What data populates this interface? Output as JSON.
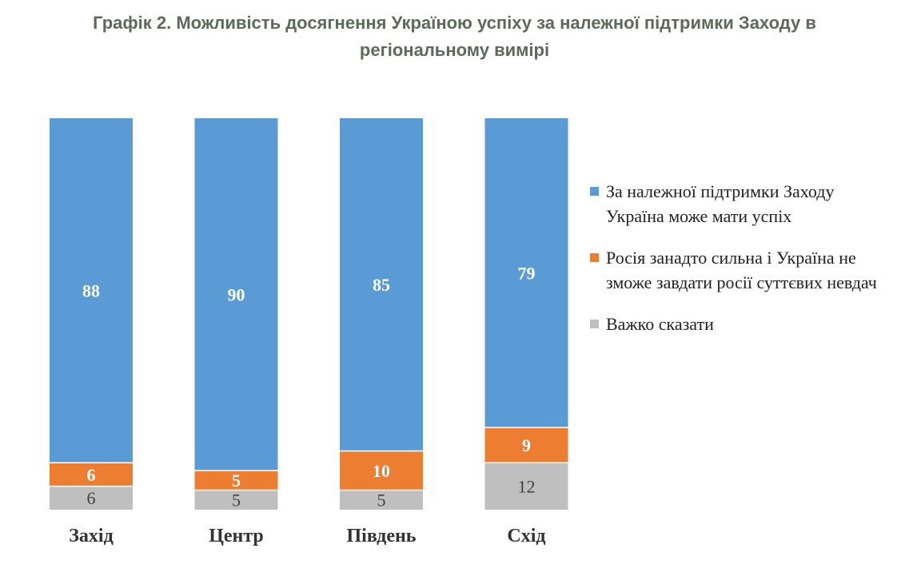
{
  "chart_data": {
    "type": "bar",
    "stacked": true,
    "title": "Графік 2. Можливість досягнення Україною успіху за належної підтримки Заходу в регіональному вимірі",
    "xlabel": "",
    "ylabel": "",
    "ylim": [
      0,
      100
    ],
    "grid": false,
    "legend_position": "right",
    "categories": [
      "Захід",
      "Центр",
      "Південь",
      "Схід"
    ],
    "series": [
      {
        "name": "За належної підтримки Заходу Україна може мати успіх",
        "color": "#5b9bd5",
        "label_color": "#ffffff",
        "label_bold": true,
        "values": [
          88,
          90,
          85,
          79
        ]
      },
      {
        "name": "Росія занадто сильна і Україна не зможе завдати росії суттєвих невдач",
        "color": "#ed7d31",
        "label_color": "#ffffff",
        "label_bold": true,
        "values": [
          6,
          5,
          10,
          9
        ]
      },
      {
        "name": "Важко сказати",
        "color": "#bfbfbf",
        "label_color": "#404040",
        "label_bold": false,
        "values": [
          6,
          5,
          5,
          12
        ]
      }
    ]
  }
}
